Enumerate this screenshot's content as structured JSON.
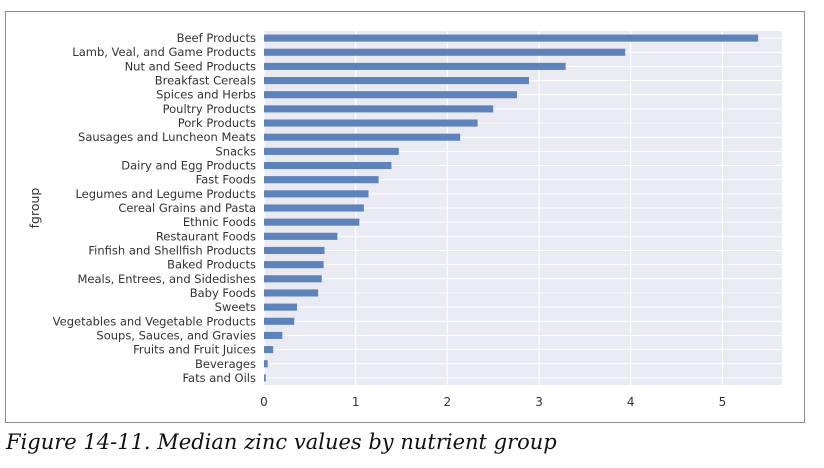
{
  "figure_caption": "Figure 14-11. Median zinc values by nutrient group",
  "colors": {
    "bar": "#5e82ba",
    "plot_bg": "#eaeaf2",
    "grid": "#ffffff",
    "text": "#333333"
  },
  "chart_data": {
    "type": "bar",
    "orientation": "horizontal",
    "title": "",
    "xlabel": "",
    "ylabel": "fgroup",
    "xlim": [
      0,
      5.65
    ],
    "xticks": [
      "0",
      "1",
      "2",
      "3",
      "4",
      "5"
    ],
    "grid": true,
    "categories": [
      "Beef Products",
      "Lamb, Veal, and Game Products",
      "Nut and Seed Products",
      "Breakfast Cereals",
      "Spices and Herbs",
      "Poultry Products",
      "Pork Products",
      "Sausages and Luncheon Meats",
      "Snacks",
      "Dairy and Egg Products",
      "Fast Foods",
      "Legumes and Legume Products",
      "Cereal Grains and Pasta",
      "Ethnic Foods",
      "Restaurant Foods",
      "Finfish and Shellfish Products",
      "Baked Products",
      "Meals, Entrees, and Sidedishes",
      "Baby Foods",
      "Sweets",
      "Vegetables and Vegetable Products",
      "Soups, Sauces, and Gravies",
      "Fruits and Fruit Juices",
      "Beverages",
      "Fats and Oils"
    ],
    "values": [
      5.39,
      3.94,
      3.29,
      2.89,
      2.76,
      2.5,
      2.33,
      2.14,
      1.47,
      1.39,
      1.25,
      1.14,
      1.09,
      1.04,
      0.8,
      0.66,
      0.65,
      0.63,
      0.59,
      0.36,
      0.33,
      0.2,
      0.1,
      0.04,
      0.02
    ]
  }
}
